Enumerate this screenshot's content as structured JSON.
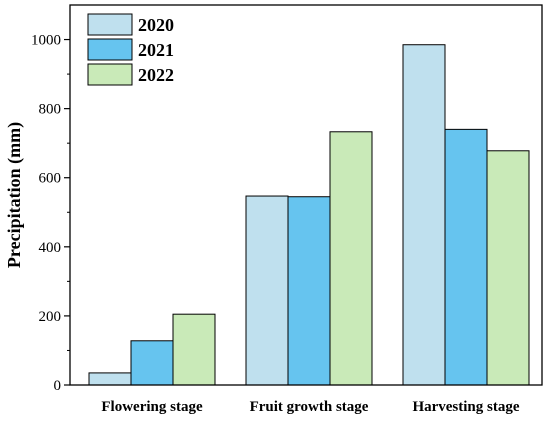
{
  "chart_data": {
    "type": "bar",
    "categories": [
      "Flowering stage",
      "Fruit growth stage",
      "Harvesting stage"
    ],
    "series": [
      {
        "name": "2020",
        "values": [
          35,
          547,
          985
        ],
        "color": "#bfe0ee"
      },
      {
        "name": "2021",
        "values": [
          128,
          545,
          740
        ],
        "color": "#66c4ef"
      },
      {
        "name": "2022",
        "values": [
          205,
          733,
          678
        ],
        "color": "#c9eab8"
      }
    ],
    "xlabel": "",
    "ylabel": "Precipitation (mm)",
    "ylim": [
      0,
      1100
    ],
    "yticks": [
      0,
      200,
      400,
      600,
      800,
      1000
    ],
    "grid": false,
    "legend_position": "top-left"
  }
}
